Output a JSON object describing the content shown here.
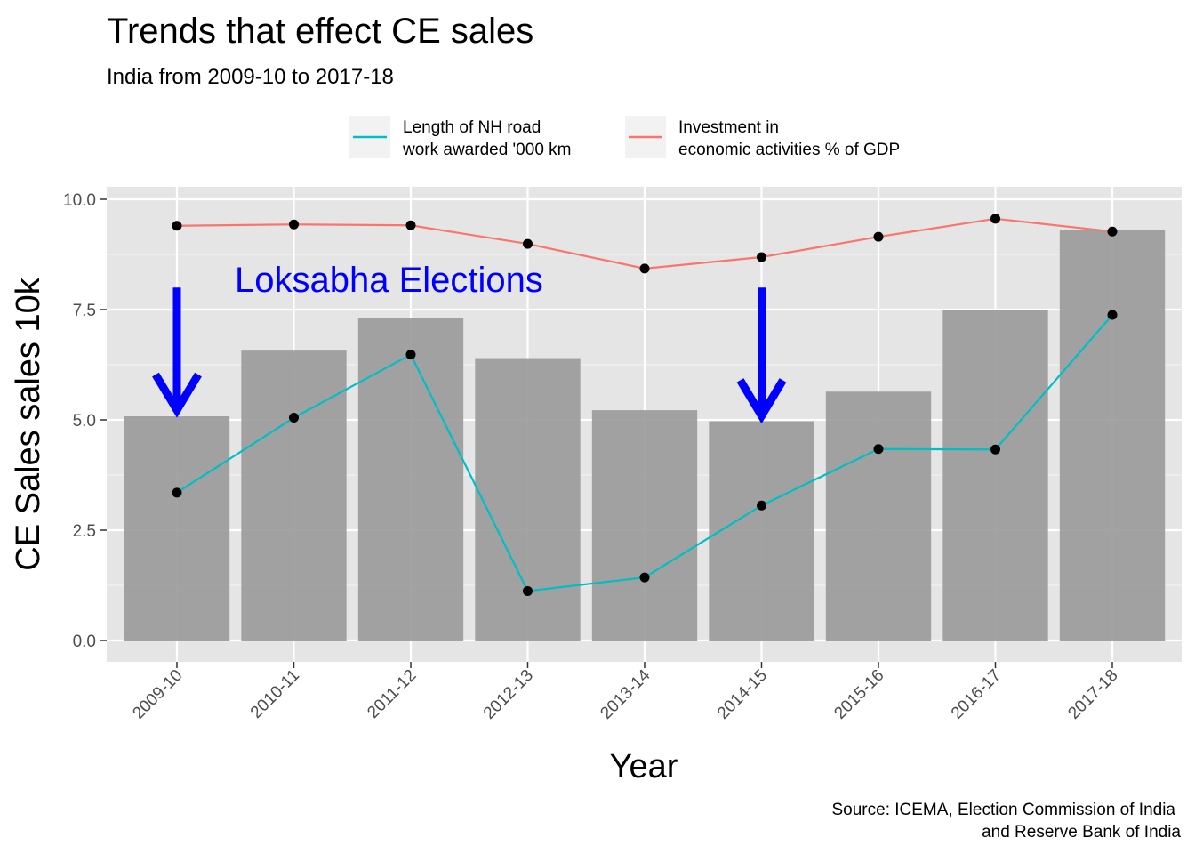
{
  "chart_data": {
    "type": "bar",
    "title": "Trends that effect CE sales",
    "subtitle": "India from 2009-10 to 2017-18",
    "xlabel": "Year",
    "ylabel": "CE Sales sales 10k",
    "caption_lines": [
      "Source: ICEMA, Election Commission of India",
      "and Reserve Bank of India"
    ],
    "categories": [
      "2009-10",
      "2010-11",
      "2011-12",
      "2012-13",
      "2013-14",
      "2014-15",
      "2015-16",
      "2016-17",
      "2017-18"
    ],
    "ylim": [
      0,
      10
    ],
    "yticks": [
      "0.0",
      "2.5",
      "5.0",
      "7.5",
      "10.0"
    ],
    "ytick_values": [
      0,
      2.5,
      5,
      7.5,
      10
    ],
    "grid": true,
    "bars": {
      "values": [
        5.08,
        6.57,
        7.31,
        6.4,
        5.22,
        4.97,
        5.64,
        7.49,
        9.3
      ],
      "color": "#999999"
    },
    "series": [
      {
        "legend_lines": [
          "Length of NH road",
          "work awarded '000 km"
        ],
        "color": "#00BFC4",
        "values": [
          3.35,
          5.05,
          6.48,
          1.12,
          1.43,
          3.06,
          4.34,
          4.33,
          7.38
        ]
      },
      {
        "legend_lines": [
          "Investment in",
          "economic activities % of GDP"
        ],
        "color": "#F8766D",
        "values": [
          9.4,
          9.43,
          9.41,
          8.99,
          8.43,
          8.69,
          9.15,
          9.56,
          9.27
        ]
      }
    ],
    "legend_position": "top",
    "annotations": {
      "text": "Loksabha Elections",
      "color": "#0000FF",
      "arrows": [
        {
          "category": "2009-10",
          "from": 8.0,
          "to": 5.1
        },
        {
          "category": "2014-15",
          "from": 8.0,
          "to": 4.97
        }
      ]
    }
  }
}
